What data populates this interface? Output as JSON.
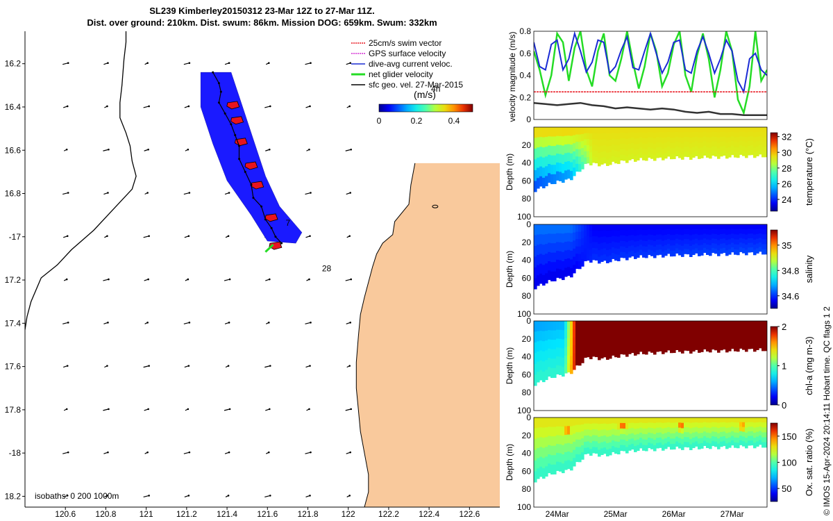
{
  "title_line1": "SL239 Kimberley20150312 23-Mar 12Z to 27-Mar 11Z.",
  "title_line2": "Dist. over ground: 210km. Dist. swum: 86km. Mission DOG: 659km. Swum: 332km",
  "credit": "© IMOS 15-Apr-2024 20:14:11 Hobart time. QC flags 1  2",
  "colors": {
    "land": "#f9c99c",
    "track_fill": "#1a1aff",
    "swim": "#e8141e",
    "gps": "#d42ad4",
    "diveavg": "#1a2bd4",
    "net": "#25dc25",
    "geo": "#000000"
  },
  "chart_data": [
    {
      "id": "map",
      "type": "scatter",
      "title": "SL239 Kimberley20150312 23-Mar 12Z to 27-Mar 11Z.",
      "xlabel": "",
      "ylabel": "",
      "xlim": [
        120.4,
        122.75
      ],
      "ylim": [
        -18.25,
        -16.05
      ],
      "x_ticks": [
        120.6,
        120.8,
        121,
        121.2,
        121.4,
        121.6,
        121.8,
        122,
        122.2,
        122.4,
        122.6
      ],
      "x_tick_labels": [
        "120.6",
        "120.8",
        "121",
        "121.2",
        "121.4",
        "121.6",
        "121.8",
        "122",
        "122.2",
        "122.4",
        "122.6"
      ],
      "y_ticks": [
        -16.2,
        -16.4,
        -16.6,
        -16.8,
        -17,
        -17.2,
        -17.4,
        -17.6,
        -17.8,
        -18,
        -18.2
      ],
      "y_tick_labels": [
        "16.2",
        "16.4",
        "16.6",
        "16.8",
        "-17",
        "17.2",
        "17.4",
        "17.6",
        "17.8",
        "-18",
        "18.2"
      ],
      "legend": [
        "25cm/s swim vector",
        "GPS surface velocity",
        "dive-avg current veloc.",
        "net glider velocity",
        "sfc geo. vel. 27-Mar-2015"
      ],
      "legend_position": "top-right",
      "colorbar": {
        "label": "(m/s)",
        "ticks": [
          0,
          0.2,
          0.4
        ],
        "tick_labels": [
          "0",
          "0.2",
          "0.4"
        ],
        "range": [
          0,
          0.5
        ]
      },
      "annotations": [
        {
          "text": "4h",
          "lon": 122.41,
          "lat": -16.33
        },
        {
          "text": "7",
          "lon": 121.69,
          "lat": -16.95
        },
        {
          "text": "28",
          "lon": 121.87,
          "lat": -17.16
        }
      ],
      "isobaths_label": "isobaths: 0   200   1000m",
      "glider_track": [
        {
          "lon": 121.33,
          "lat": -16.24
        },
        {
          "lon": 121.36,
          "lat": -16.29
        },
        {
          "lon": 121.37,
          "lat": -16.33
        },
        {
          "lon": 121.36,
          "lat": -16.38
        },
        {
          "lon": 121.39,
          "lat": -16.43
        },
        {
          "lon": 121.42,
          "lat": -16.48
        },
        {
          "lon": 121.44,
          "lat": -16.53
        },
        {
          "lon": 121.46,
          "lat": -16.58
        },
        {
          "lon": 121.46,
          "lat": -16.64
        },
        {
          "lon": 121.49,
          "lat": -16.7
        },
        {
          "lon": 121.52,
          "lat": -16.76
        },
        {
          "lon": 121.53,
          "lat": -16.82
        },
        {
          "lon": 121.57,
          "lat": -16.86
        },
        {
          "lon": 121.59,
          "lat": -16.92
        },
        {
          "lon": 121.62,
          "lat": -16.96
        },
        {
          "lon": 121.64,
          "lat": -17.0
        },
        {
          "lon": 121.67,
          "lat": -17.03
        }
      ],
      "track_swath": [
        [
          121.27,
          -16.24
        ],
        [
          121.42,
          -16.24
        ],
        [
          121.47,
          -16.38
        ],
        [
          121.53,
          -16.55
        ],
        [
          121.59,
          -16.72
        ],
        [
          121.66,
          -16.86
        ],
        [
          121.77,
          -16.98
        ],
        [
          121.74,
          -17.03
        ],
        [
          121.6,
          -17.02
        ],
        [
          121.52,
          -16.9
        ],
        [
          121.4,
          -16.74
        ],
        [
          121.33,
          -16.57
        ],
        [
          121.27,
          -16.4
        ]
      ],
      "swim_vectors": [
        {
          "lon": 121.43,
          "lat": -16.39
        },
        {
          "lon": 121.45,
          "lat": -16.46
        },
        {
          "lon": 121.47,
          "lat": -16.56
        },
        {
          "lon": 121.52,
          "lat": -16.67
        },
        {
          "lon": 121.55,
          "lat": -16.76
        },
        {
          "lon": 121.62,
          "lat": -16.91
        },
        {
          "lon": 121.64,
          "lat": -17.04
        }
      ],
      "net_velocity_end": {
        "lon": 121.59,
        "lat": -17.07
      },
      "sfc_geo_vectors": {
        "lons": [
          120.6,
          120.8,
          121.0,
          121.2,
          121.4,
          121.6,
          121.8,
          122.0
        ],
        "lats": [
          -16.2,
          -16.4,
          -16.6,
          -16.8,
          -17.0,
          -17.2,
          -17.4,
          -17.6,
          -17.8,
          -18.0,
          -18.2
        ]
      },
      "isobath_200m": [
        [
          120.9,
          -16.05
        ],
        [
          120.9,
          -16.1
        ],
        [
          120.89,
          -16.18
        ],
        [
          120.88,
          -16.3
        ],
        [
          120.87,
          -16.38
        ],
        [
          120.87,
          -16.45
        ],
        [
          120.9,
          -16.52
        ],
        [
          120.92,
          -16.58
        ],
        [
          120.93,
          -16.65
        ],
        [
          120.95,
          -16.72
        ],
        [
          120.93,
          -16.78
        ],
        [
          120.84,
          -16.87
        ],
        [
          120.74,
          -16.97
        ],
        [
          120.63,
          -17.06
        ],
        [
          120.56,
          -17.13
        ],
        [
          120.48,
          -17.19
        ],
        [
          120.43,
          -17.3
        ],
        [
          120.41,
          -17.37
        ],
        [
          120.4,
          -17.43
        ]
      ],
      "coastline": [
        [
          122.33,
          -16.66
        ],
        [
          122.31,
          -16.76
        ],
        [
          122.3,
          -16.85
        ],
        [
          122.23,
          -16.93
        ],
        [
          122.22,
          -16.99
        ],
        [
          122.17,
          -17.03
        ],
        [
          122.14,
          -17.08
        ],
        [
          122.12,
          -17.14
        ],
        [
          122.1,
          -17.21
        ],
        [
          122.08,
          -17.28
        ],
        [
          122.06,
          -17.36
        ],
        [
          122.05,
          -17.46
        ],
        [
          122.04,
          -17.58
        ],
        [
          122.04,
          -17.7
        ],
        [
          122.05,
          -17.8
        ],
        [
          122.06,
          -17.9
        ],
        [
          122.08,
          -18.0
        ],
        [
          122.1,
          -18.1
        ],
        [
          122.1,
          -18.18
        ],
        [
          122.08,
          -18.25
        ]
      ]
    },
    {
      "id": "velocity",
      "type": "line",
      "title": "",
      "xlabel": "",
      "ylabel": "velocity magnitude (m/s)",
      "xlim": [
        23.6,
        27.6
      ],
      "ylim": [
        0,
        0.8
      ],
      "y_ticks": [
        0,
        0.2,
        0.4,
        0.6,
        0.8
      ],
      "y_tick_labels": [
        "0",
        "0.2",
        "0.4",
        "0.6",
        "0.8"
      ],
      "series": [
        {
          "name": "dive-avg current veloc.",
          "x": [
            23.6,
            23.7,
            23.8,
            23.9,
            24.0,
            24.1,
            24.2,
            24.3,
            24.4,
            24.5,
            24.6,
            24.7,
            24.8,
            24.9,
            25.0,
            25.1,
            25.2,
            25.3,
            25.4,
            25.5,
            25.6,
            25.7,
            25.8,
            25.9,
            26.0,
            26.1,
            26.2,
            26.3,
            26.4,
            26.5,
            26.6,
            26.7,
            26.8,
            26.9,
            27.0,
            27.1,
            27.2,
            27.3,
            27.4,
            27.5,
            27.6
          ],
          "values": [
            0.7,
            0.48,
            0.45,
            0.68,
            0.72,
            0.45,
            0.55,
            0.78,
            0.62,
            0.43,
            0.52,
            0.72,
            0.7,
            0.42,
            0.48,
            0.63,
            0.75,
            0.47,
            0.45,
            0.62,
            0.78,
            0.6,
            0.42,
            0.52,
            0.7,
            0.72,
            0.45,
            0.42,
            0.62,
            0.75,
            0.6,
            0.42,
            0.55,
            0.72,
            0.62,
            0.35,
            0.25,
            0.55,
            0.6,
            0.45,
            0.4
          ]
        },
        {
          "name": "net glider velocity",
          "x": [
            23.6,
            23.7,
            23.8,
            23.9,
            24.0,
            24.1,
            24.2,
            24.3,
            24.4,
            24.5,
            24.6,
            24.7,
            24.8,
            24.9,
            25.0,
            25.1,
            25.2,
            25.3,
            25.4,
            25.5,
            25.6,
            25.7,
            25.8,
            25.9,
            26.0,
            26.1,
            26.2,
            26.3,
            26.4,
            26.5,
            26.6,
            26.7,
            26.8,
            26.9,
            27.0,
            27.1,
            27.2,
            27.3,
            27.4,
            27.5,
            27.6
          ],
          "values": [
            0.62,
            0.45,
            0.22,
            0.4,
            0.78,
            0.7,
            0.35,
            0.65,
            0.8,
            0.45,
            0.3,
            0.62,
            0.78,
            0.4,
            0.35,
            0.55,
            0.8,
            0.52,
            0.28,
            0.48,
            0.78,
            0.62,
            0.3,
            0.42,
            0.68,
            0.8,
            0.4,
            0.25,
            0.58,
            0.78,
            0.55,
            0.2,
            0.45,
            0.8,
            0.62,
            0.18,
            0.06,
            0.3,
            0.8,
            0.35,
            0.45
          ]
        },
        {
          "name": "25cm/s swim vector",
          "x": [
            23.6,
            27.6
          ],
          "values": [
            0.25,
            0.25
          ]
        },
        {
          "name": "sfc geo. vel.",
          "x": [
            23.6,
            23.8,
            24.0,
            24.2,
            24.4,
            24.6,
            24.8,
            25.0,
            25.2,
            25.4,
            25.6,
            25.8,
            26.0,
            26.2,
            26.4,
            26.6,
            26.8,
            27.0,
            27.2,
            27.4,
            27.6
          ],
          "values": [
            0.15,
            0.14,
            0.13,
            0.14,
            0.15,
            0.13,
            0.12,
            0.1,
            0.11,
            0.1,
            0.09,
            0.1,
            0.09,
            0.07,
            0.06,
            0.07,
            0.05,
            0.05,
            0.04,
            0.04,
            0.04
          ]
        }
      ]
    },
    {
      "id": "temperature",
      "type": "heatmap",
      "xlabel": "",
      "ylabel": "Depth (m)",
      "xlim": [
        23.6,
        27.6
      ],
      "ylim": [
        100,
        0
      ],
      "y_ticks": [
        20,
        40,
        60,
        80,
        100
      ],
      "y_tick_labels": [
        "20",
        "40",
        "60",
        "80",
        "100"
      ],
      "colorbar": {
        "label": "temperature (°C)",
        "range": [
          22.5,
          32.5
        ],
        "ticks": [
          24,
          26,
          28,
          30,
          32
        ],
        "tick_labels": [
          "24",
          "26",
          "28",
          "30",
          "32"
        ]
      },
      "bottom_depth": {
        "x": [
          23.6,
          23.9,
          24.2,
          24.5,
          24.8,
          25.1,
          25.4,
          25.7,
          26.0,
          26.3,
          26.6,
          26.9,
          27.2,
          27.6
        ],
        "values": [
          70,
          62,
          58,
          40,
          42,
          38,
          36,
          35,
          34,
          34,
          33,
          33,
          32,
          32
        ]
      },
      "profile": [
        {
          "x": 23.6,
          "top": 30,
          "bottom": 24
        },
        {
          "x": 24.2,
          "top": 30,
          "bottom": 25
        },
        {
          "x": 24.6,
          "top": 29.5,
          "bottom": 29
        },
        {
          "x": 27.6,
          "top": 29.5,
          "bottom": 29
        }
      ]
    },
    {
      "id": "salinity",
      "type": "heatmap",
      "xlabel": "",
      "ylabel": "Depth (m)",
      "xlim": [
        23.6,
        27.6
      ],
      "ylim": [
        100,
        0
      ],
      "y_ticks": [
        0,
        20,
        40,
        60,
        80,
        100
      ],
      "y_tick_labels": [
        "0",
        "20",
        "40",
        "60",
        "80",
        "100"
      ],
      "colorbar": {
        "label": "salinity",
        "range": [
          34.5,
          35.12
        ],
        "ticks": [
          34.6,
          34.8,
          35
        ],
        "tick_labels": [
          "34.6",
          "34.8",
          "35"
        ]
      },
      "bottom_depth": {
        "x": [
          23.6,
          23.9,
          24.2,
          24.5,
          24.8,
          25.1,
          25.4,
          25.7,
          26.0,
          26.3,
          26.6,
          26.9,
          27.2,
          27.6
        ],
        "values": [
          70,
          62,
          58,
          40,
          42,
          38,
          36,
          35,
          34,
          34,
          33,
          33,
          32,
          32
        ]
      },
      "profile": [
        {
          "x": 23.6,
          "top": 34.65,
          "bottom": 34.55
        },
        {
          "x": 24.2,
          "top": 34.65,
          "bottom": 34.55
        },
        {
          "x": 24.6,
          "top": 34.56,
          "bottom": 34.6
        },
        {
          "x": 27.6,
          "top": 34.56,
          "bottom": 34.62
        }
      ]
    },
    {
      "id": "chla",
      "type": "heatmap",
      "xlabel": "",
      "ylabel": "Depth (m)",
      "xlim": [
        23.6,
        27.6
      ],
      "ylim": [
        100,
        0
      ],
      "y_ticks": [
        0,
        20,
        40,
        60,
        80,
        100
      ],
      "y_tick_labels": [
        "0",
        "20",
        "40",
        "60",
        "80",
        "100"
      ],
      "colorbar": {
        "label": "chl-a (mg m-3)",
        "range": [
          0,
          2
        ],
        "ticks": [
          0,
          1,
          2
        ],
        "tick_labels": [
          "0",
          "1",
          "2"
        ]
      },
      "bottom_depth": {
        "x": [
          23.6,
          23.9,
          24.2,
          24.5,
          24.8,
          25.1,
          25.4,
          25.7,
          26.0,
          26.3,
          26.6,
          26.9,
          27.2,
          27.6
        ],
        "values": [
          70,
          62,
          58,
          40,
          42,
          38,
          36,
          35,
          34,
          34,
          33,
          33,
          32,
          32
        ]
      },
      "profile": [
        {
          "x": 23.6,
          "top": 0.55,
          "bottom": 0.9
        },
        {
          "x": 24.1,
          "top": 0.6,
          "bottom": 0.9
        },
        {
          "x": 24.3,
          "top": 2.0,
          "bottom": 2.0
        },
        {
          "x": 27.6,
          "top": 2.0,
          "bottom": 2.0
        }
      ]
    },
    {
      "id": "oxygen",
      "type": "heatmap",
      "xlabel": "",
      "ylabel": "Depth (m)",
      "xlim": [
        23.6,
        27.6
      ],
      "ylim": [
        100,
        0
      ],
      "y_ticks": [
        0,
        20,
        40,
        60,
        80,
        100
      ],
      "y_tick_labels": [
        "0",
        "20",
        "40",
        "60",
        "80",
        "100"
      ],
      "x_ticks": [
        24.0,
        25.0,
        26.0,
        27.0
      ],
      "x_tick_labels": [
        "24Mar",
        "25Mar",
        "26Mar",
        "27Mar"
      ],
      "colorbar": {
        "label": "Ox. sat. ratio (%)",
        "range": [
          25,
          175
        ],
        "ticks": [
          50,
          100,
          150
        ],
        "tick_labels": [
          "50",
          "100",
          "150"
        ]
      },
      "bottom_depth": {
        "x": [
          23.6,
          23.9,
          24.2,
          24.5,
          24.8,
          25.1,
          25.4,
          25.7,
          26.0,
          26.3,
          26.6,
          26.9,
          27.2,
          27.6
        ],
        "values": [
          70,
          62,
          58,
          40,
          42,
          38,
          36,
          35,
          34,
          34,
          33,
          33,
          32,
          32
        ]
      },
      "profile": [
        {
          "x": 23.6,
          "top": 130,
          "bottom": 90
        },
        {
          "x": 27.6,
          "top": 130,
          "bottom": 90
        }
      ],
      "hotspots": [
        {
          "x": 24.15,
          "depth": 12,
          "value": 172
        },
        {
          "x": 25.1,
          "depth": 10,
          "value": 168
        },
        {
          "x": 26.1,
          "depth": 10,
          "value": 170
        },
        {
          "x": 27.15,
          "depth": 10,
          "value": 165
        }
      ]
    }
  ]
}
